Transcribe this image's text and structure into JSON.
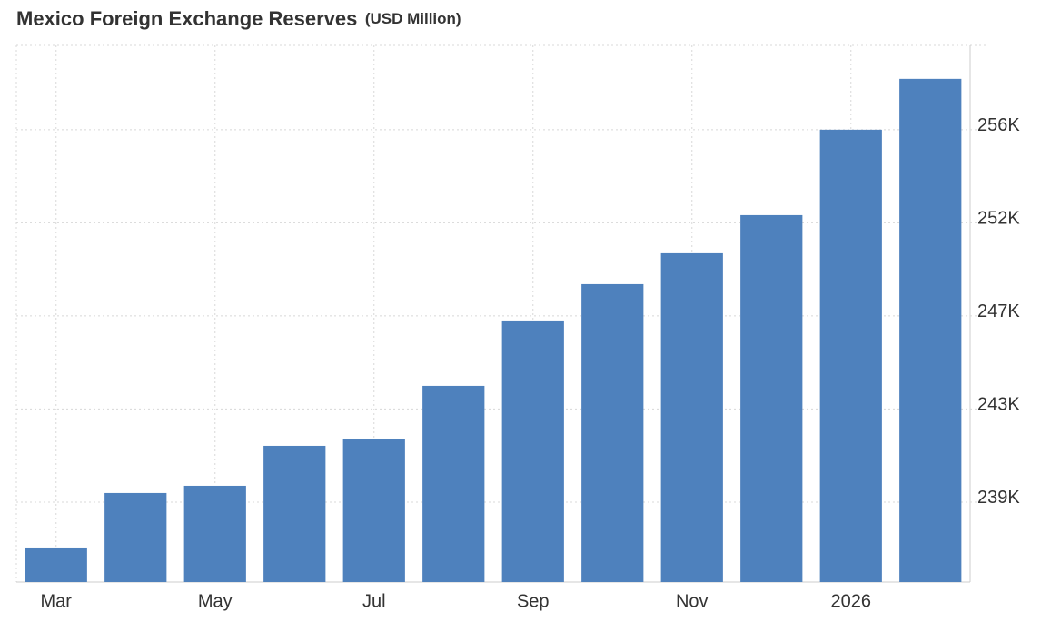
{
  "chart_data": {
    "type": "bar",
    "title": "Mexico Foreign Exchange Reserves",
    "subtitle": "(USD Million)",
    "categories": [
      "Mar",
      null,
      "May",
      null,
      "Jul",
      null,
      "Sep",
      null,
      "Nov",
      null,
      "2026",
      null
    ],
    "values": [
      236827,
      239315,
      239646,
      241470,
      241800,
      244207,
      247192,
      248850,
      250260,
      252001,
      255900,
      258222
    ],
    "color": "#4e81bd",
    "ylim": [
      235250,
      259750
    ],
    "yticks": [
      {
        "value": 238900,
        "label": "239K"
      },
      {
        "value": 243150,
        "label": "243K"
      },
      {
        "value": 247400,
        "label": "247K"
      },
      {
        "value": 251650,
        "label": "252K"
      },
      {
        "value": 255900,
        "label": "256K"
      }
    ],
    "grid": true,
    "y_axis_side": "right"
  }
}
